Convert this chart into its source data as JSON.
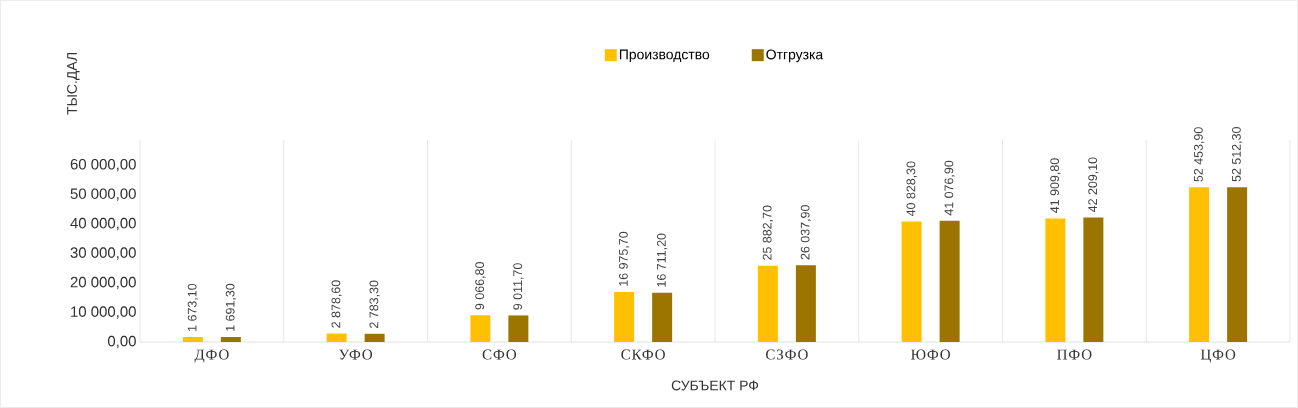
{
  "chart_data": {
    "type": "bar",
    "xlabel": "СУБЪЕКТ РФ",
    "ylabel": "ТЫС.ДАЛ",
    "categories": [
      "ДФО",
      "УФО",
      "СФО",
      "СКФО",
      "СЗФО",
      "ЮФО",
      "ПФО",
      "ЦФО"
    ],
    "series": [
      {
        "name": "Производство",
        "color": "#ffc000",
        "values": [
          1673.1,
          2878.6,
          9066.8,
          16975.7,
          25882.7,
          40828.3,
          41909.8,
          52453.9
        ],
        "value_labels": [
          "1 673,10",
          "2 878,60",
          "9 066,80",
          "16 975,70",
          "25 882,70",
          "40 828,30",
          "41 909,80",
          "52 453,90"
        ]
      },
      {
        "name": "Отгрузка",
        "color": "#9c7400",
        "values": [
          1691.3,
          2783.3,
          9011.7,
          16711.2,
          26037.9,
          41076.9,
          42209.1,
          52512.3
        ],
        "value_labels": [
          "1 691,30",
          "2 783,30",
          "9 011,70",
          "16 711,20",
          "26 037,90",
          "41 076,90",
          "42 209,10",
          "52 512,30"
        ]
      }
    ],
    "ylim": [
      0,
      68500
    ],
    "yticks": [
      {
        "value": 0,
        "label": "0,00"
      },
      {
        "value": 10000,
        "label": "10 000,00"
      },
      {
        "value": 20000,
        "label": "20 000,00"
      },
      {
        "value": 30000,
        "label": "30 000,00"
      },
      {
        "value": 40000,
        "label": "40 000,00"
      },
      {
        "value": 50000,
        "label": "50 000,00"
      },
      {
        "value": 60000,
        "label": "60 000,00"
      }
    ],
    "grid": "x",
    "legend": "top"
  }
}
